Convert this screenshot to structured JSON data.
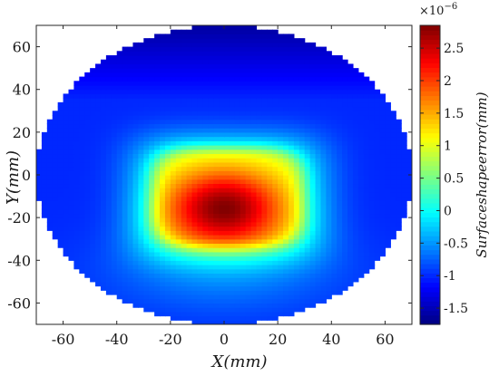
{
  "chart_data": {
    "type": "heatmap",
    "xlabel": "X(mm)",
    "ylabel": "Y(mm)",
    "colorbar_label": "Surfaceshapeerror(mm)",
    "colorbar_exponent": "×10",
    "colorbar_exponent_power": "−6",
    "xlim": [
      -70,
      70
    ],
    "ylim": [
      -70,
      70
    ],
    "xticks": [
      -60,
      -40,
      -20,
      0,
      20,
      40,
      60
    ],
    "yticks": [
      -60,
      -40,
      -20,
      0,
      20,
      40,
      60
    ],
    "xtick_labels": [
      "-60",
      "-40",
      "-20",
      "0",
      "20",
      "40",
      "60"
    ],
    "ytick_labels": [
      "-60",
      "-40",
      "-20",
      "0",
      "20",
      "40",
      "60"
    ],
    "clim": [
      -1.75,
      2.85
    ],
    "colorbar_ticks": [
      2.5,
      2,
      1.5,
      1,
      0.5,
      0,
      -0.5,
      -1,
      -1.5
    ],
    "colorbar_tick_labels": [
      "2.5",
      "2",
      "1.5",
      "1",
      "0.5",
      "0",
      "-0.5",
      "-1",
      "-1.5"
    ],
    "colormap": "jet",
    "domain_shape": "ellipse",
    "domain_radii": [
      70,
      70
    ],
    "surface": {
      "base": -1.0,
      "top_edge_value": -1.6,
      "peak": {
        "x": 0,
        "y": -15,
        "value": 2.8
      },
      "plateau": {
        "x_range": [
          -27,
          30
        ],
        "y_range": [
          -34,
          13
        ],
        "value": 1.0
      },
      "halo_value": -0.4,
      "bottom_lobe": {
        "x": 0,
        "y": -45,
        "value": -0.3
      }
    },
    "grid": false
  }
}
